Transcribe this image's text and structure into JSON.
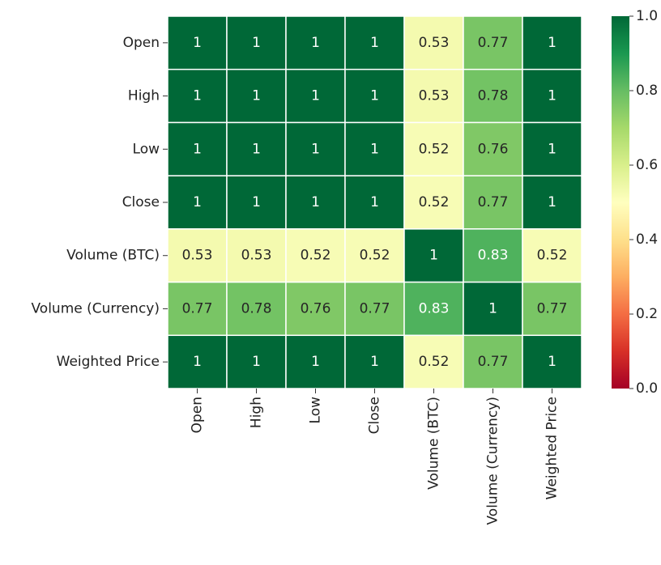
{
  "chart_data": {
    "type": "heatmap",
    "x": [
      "Open",
      "High",
      "Low",
      "Close",
      "Volume (BTC)",
      "Volume (Currency)",
      "Weighted Price"
    ],
    "y": [
      "Open",
      "High",
      "Low",
      "Close",
      "Volume (BTC)",
      "Volume (Currency)",
      "Weighted Price"
    ],
    "values": [
      [
        1,
        1,
        1,
        1,
        0.53,
        0.77,
        1
      ],
      [
        1,
        1,
        1,
        1,
        0.53,
        0.78,
        1
      ],
      [
        1,
        1,
        1,
        1,
        0.52,
        0.76,
        1
      ],
      [
        1,
        1,
        1,
        1,
        0.52,
        0.77,
        1
      ],
      [
        0.53,
        0.53,
        0.52,
        0.52,
        1,
        0.83,
        0.52
      ],
      [
        0.77,
        0.78,
        0.76,
        0.77,
        0.83,
        1,
        0.77
      ],
      [
        1,
        1,
        1,
        1,
        0.52,
        0.77,
        1
      ]
    ],
    "colormap": "RdYlGn",
    "zlim": [
      0,
      1
    ],
    "zticks": [
      {
        "value": 0,
        "label": "0.0"
      },
      0.2,
      0.4,
      0.6,
      0.8,
      {
        "value": 1,
        "label": "1.0"
      }
    ]
  }
}
